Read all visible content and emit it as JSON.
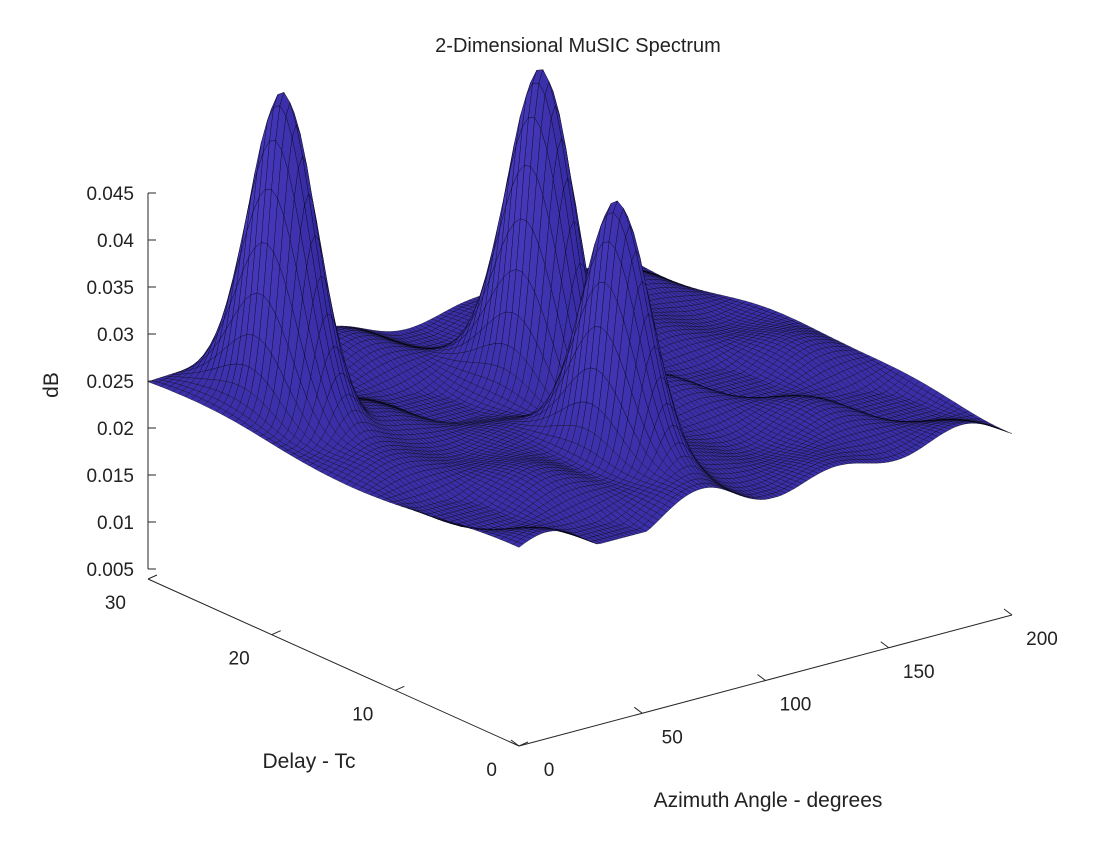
{
  "chart_data": {
    "type": "surface",
    "title": "2-Dimensional MuSIC Spectrum",
    "xlabel": "Azimuth Angle - degrees",
    "ylabel": "Delay - Tc",
    "zlabel": "dB",
    "xlim": [
      0,
      200
    ],
    "ylim": [
      0,
      30
    ],
    "zlim": [
      0.005,
      0.045
    ],
    "xticks": [
      "0",
      "50",
      "100",
      "150",
      "200"
    ],
    "yticks": [
      "0",
      "10",
      "20",
      "30"
    ],
    "zticks": [
      "0.005",
      "0.01",
      "0.015",
      "0.02",
      "0.025",
      "0.03",
      "0.035",
      "0.04",
      "0.045"
    ],
    "grid": false,
    "surface_color": "#3a2fa8",
    "edge_color": "#000000",
    "baseline": 0.0065,
    "peaks": [
      {
        "azimuth": 20,
        "delay": 23,
        "value": 0.0405
      },
      {
        "azimuth": 100,
        "delay": 18,
        "value": 0.0395
      },
      {
        "azimuth": 80,
        "delay": 8,
        "value": 0.0345
      }
    ],
    "peak_width_azimuth": 6,
    "peak_width_delay": 2.5
  }
}
